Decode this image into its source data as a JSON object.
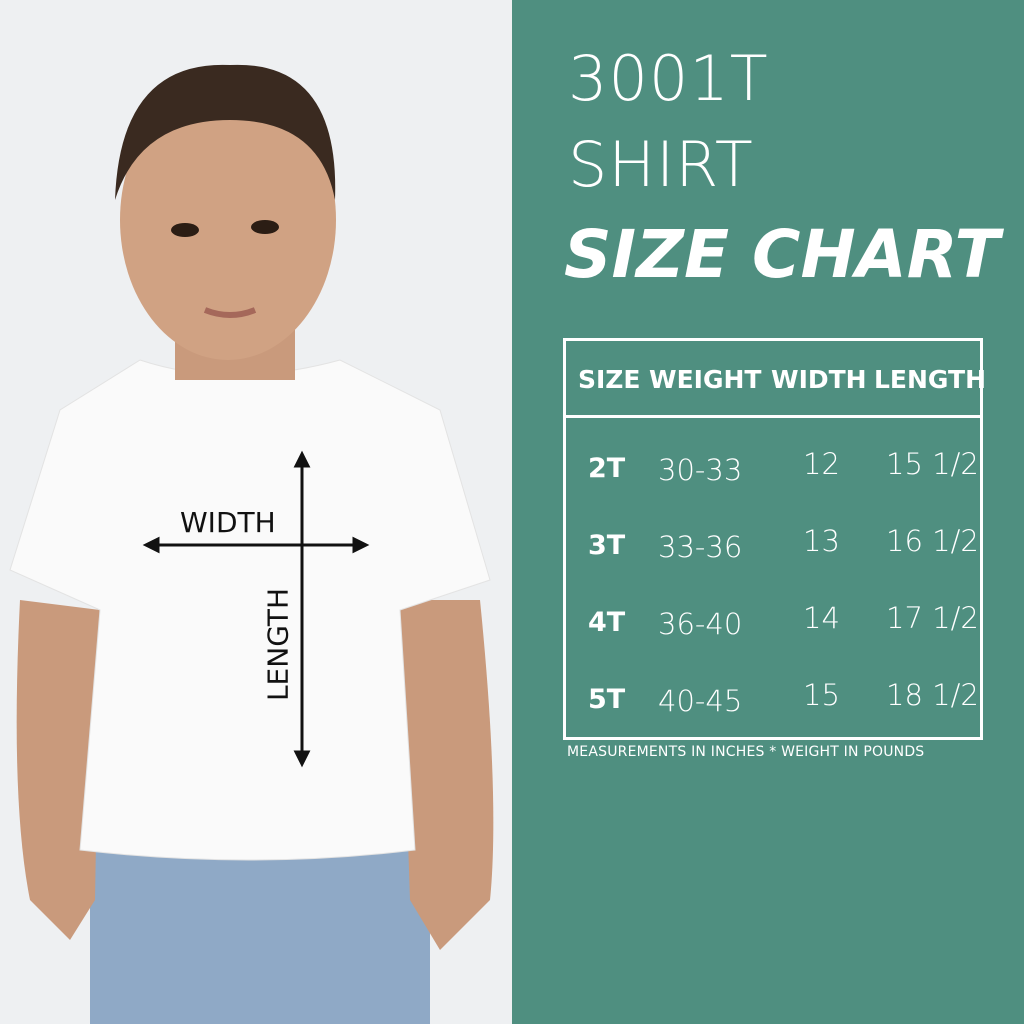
{
  "title": {
    "line1": "3001T",
    "line2": "SHIRT",
    "line3": "SIZE CHART"
  },
  "table": {
    "headers": [
      "SIZE",
      "WEIGHT",
      "WIDTH",
      "LENGTH"
    ],
    "rows": [
      [
        "2T",
        "30-33",
        "12",
        "15 1/2"
      ],
      [
        "3T",
        "33-36",
        "13",
        "16 1/2"
      ],
      [
        "4T",
        "36-40",
        "14",
        "17 1/2"
      ],
      [
        "5T",
        "40-45",
        "15",
        "18 1/2"
      ]
    ]
  },
  "note": "MEASUREMENTS IN INCHES * WEIGHT IN POUNDS",
  "photo": {
    "width_label": "WIDTH",
    "length_label": "LENGTH"
  },
  "colors": {
    "panel": "#4f8f80",
    "text": "#ffffff",
    "photo_bg": "#eef0f2"
  }
}
